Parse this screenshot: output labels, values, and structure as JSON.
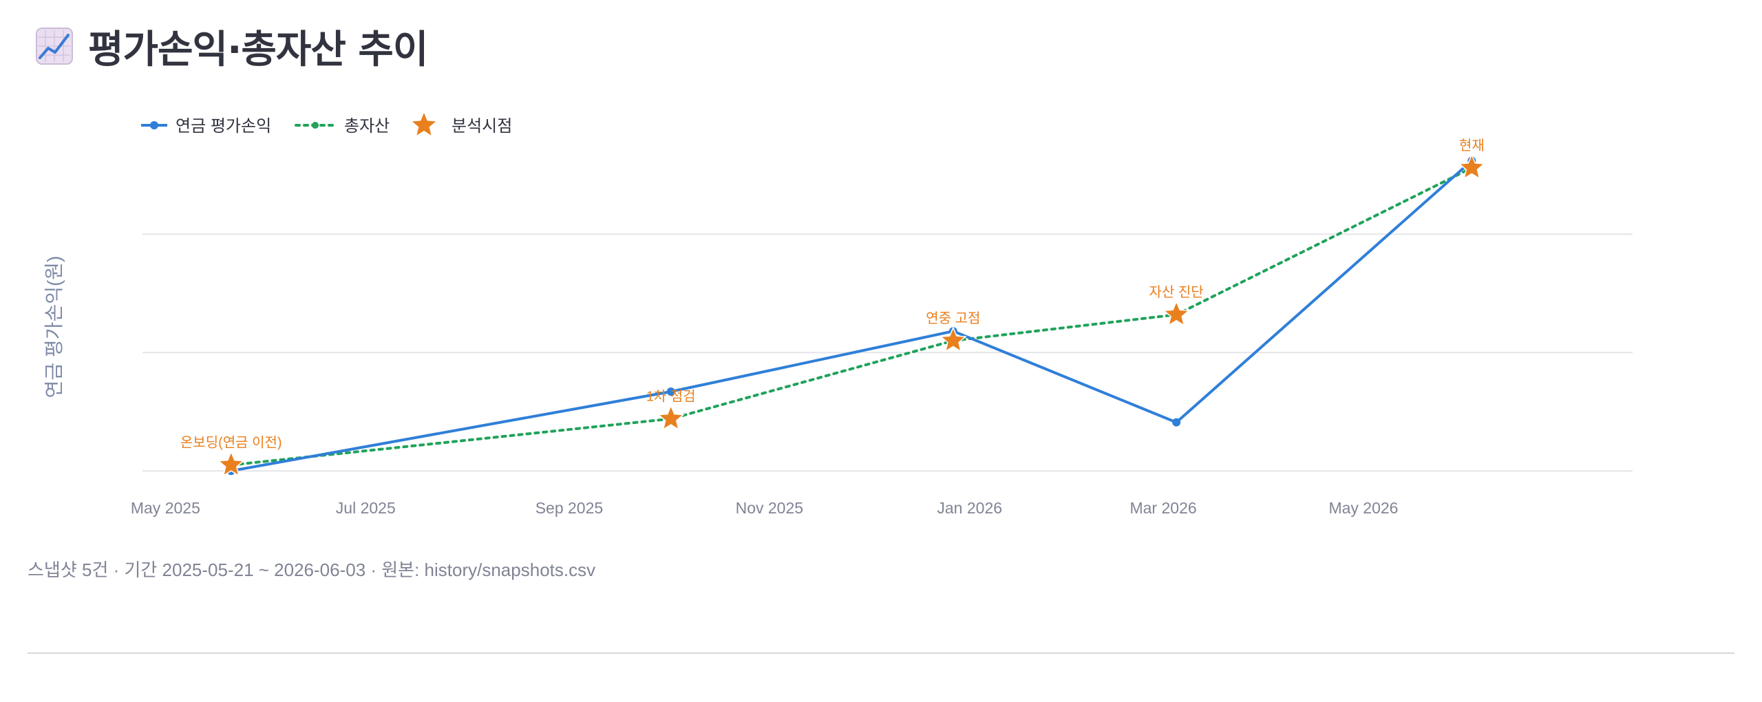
{
  "page": {
    "title": "평가손익·총자산 추이",
    "title_icon": "chart-increasing-icon",
    "caption": "스냅샷 5건 · 기간 2025-05-21 ~ 2026-06-03 · 원본: history/snapshots.csv"
  },
  "colors": {
    "pension_pnl": "#2f7fd8",
    "total_assets": "#1fa35a",
    "analysis_point": "#e8801e",
    "grid": "#e6e6ea",
    "axis_text": "#808495"
  },
  "chart_data": {
    "type": "line",
    "title": "",
    "xlabel": "",
    "ylabel": "연금 평가손익(원)",
    "legend_position": "top-left",
    "grid": true,
    "x_tick_labels": [
      "May 2025",
      "Jul 2025",
      "Sep 2025",
      "Nov 2025",
      "Jan 2026",
      "Mar 2026",
      "May 2026"
    ],
    "x_tick_dates": [
      "2025-05-01",
      "2025-07-01",
      "2025-09-01",
      "2025-11-01",
      "2026-01-01",
      "2026-03-01",
      "2026-05-01"
    ],
    "x_range": [
      "2025-04-24",
      "2026-07-22"
    ],
    "y_range": [
      -0.15,
      2.35
    ],
    "y_tick_labels_shown": false,
    "x": [
      "2025-05-21",
      "2025-10-02",
      "2025-12-27",
      "2026-03-05",
      "2026-06-03"
    ],
    "series": [
      {
        "name": "연금 평가손익",
        "style": "solid",
        "marker": "circle",
        "values": [
          0.0,
          0.67,
          1.18,
          0.41,
          2.62
        ]
      },
      {
        "name": "총자산",
        "style": "dotted",
        "marker": "circle",
        "values": [
          0.05,
          0.44,
          1.1,
          1.32,
          2.56
        ]
      },
      {
        "name": "분석시점",
        "style": "markers",
        "marker": "star",
        "values": [
          0.05,
          0.44,
          1.1,
          1.32,
          2.56
        ],
        "labels": [
          "온보딩(연금 이전)",
          "1차 점검",
          "연중 고점",
          "자산 진단",
          "현재"
        ]
      }
    ]
  }
}
